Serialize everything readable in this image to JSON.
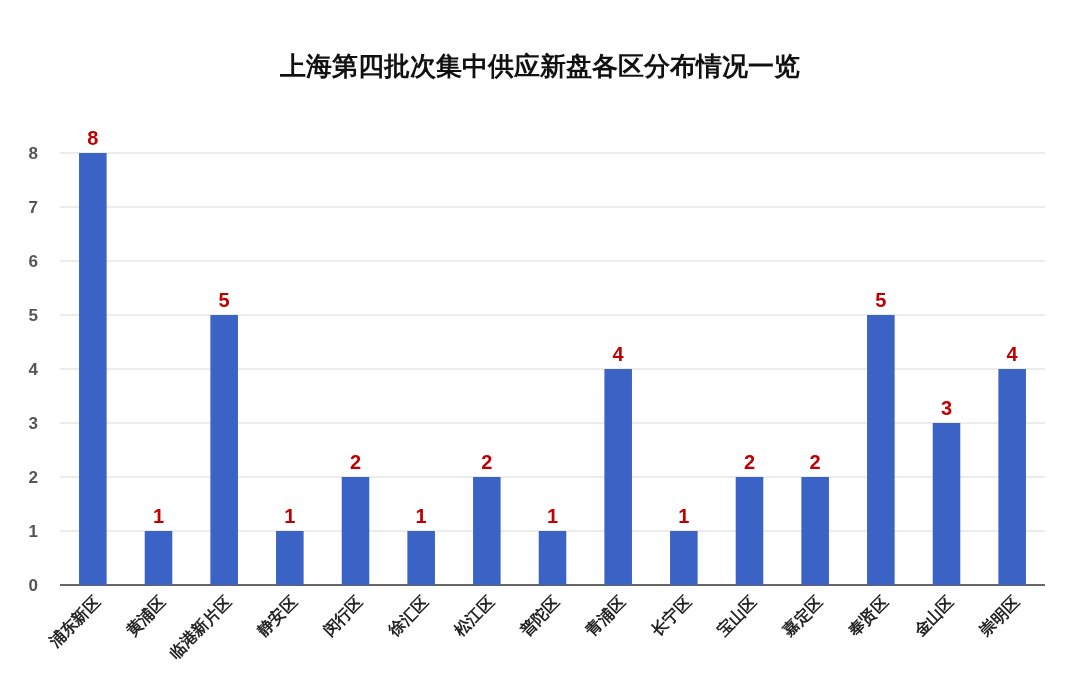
{
  "chart_data": {
    "type": "bar",
    "title": "上海第四批次集中供应新盘各区分布情况一览",
    "categories": [
      "浦东新区",
      "黄浦区",
      "临港新片区",
      "静安区",
      "闵行区",
      "徐汇区",
      "松江区",
      "普陀区",
      "青浦区",
      "长宁区",
      "宝山区",
      "嘉定区",
      "奉贤区",
      "金山区",
      "崇明区"
    ],
    "values": [
      8,
      1,
      5,
      1,
      2,
      1,
      2,
      1,
      4,
      1,
      2,
      2,
      5,
      3,
      4
    ],
    "color": "#3b63c6",
    "ylim": [
      0,
      8
    ],
    "yticks": [
      0,
      1,
      2,
      3,
      4,
      5,
      6,
      7,
      8
    ],
    "grid": "y",
    "data_labels": true
  }
}
